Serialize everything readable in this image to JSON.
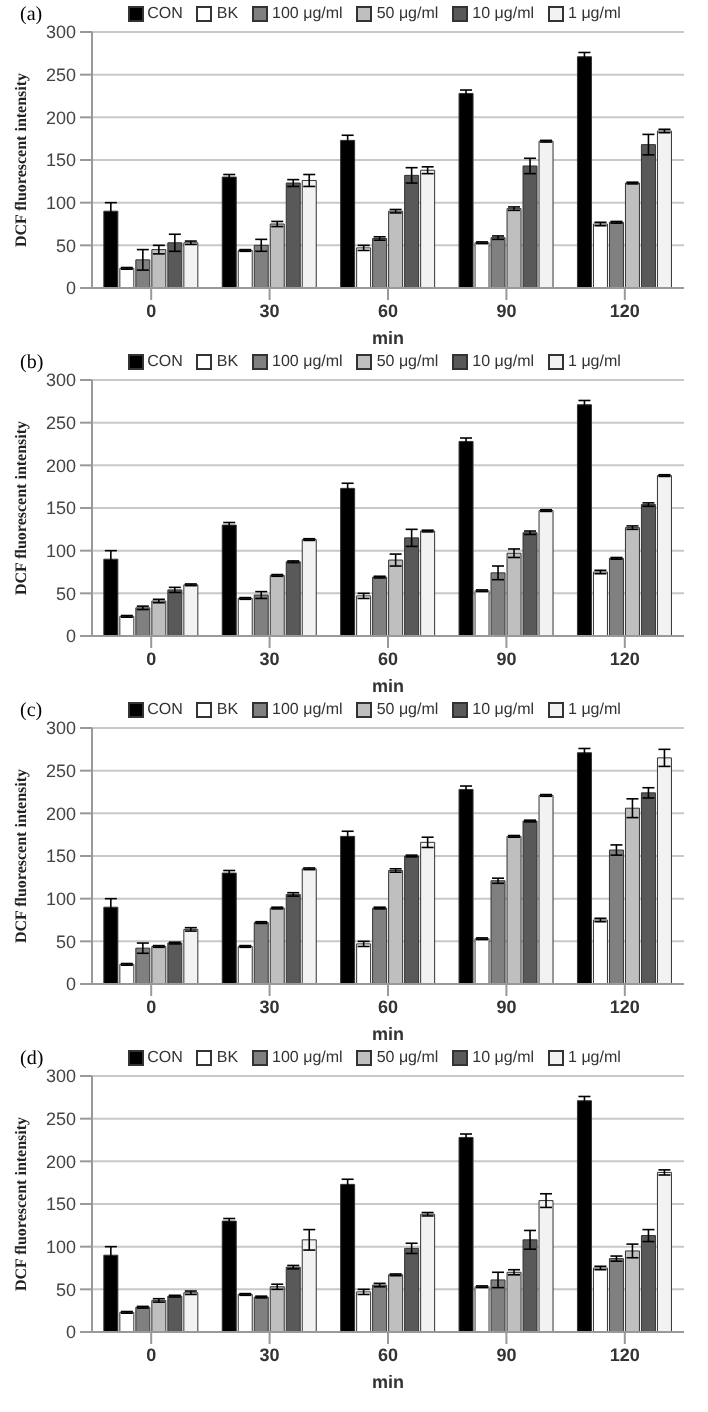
{
  "chart_data": [
    {
      "type": "bar",
      "title": "(a)",
      "xlabel": "min",
      "ylabel": "DCF fluorescent intensity",
      "categories": [
        "0",
        "30",
        "60",
        "90",
        "120"
      ],
      "ylim": [
        0,
        300
      ],
      "yticks": [
        0,
        50,
        100,
        150,
        200,
        250,
        300
      ],
      "grid": "y",
      "legend": "top",
      "series": [
        {
          "name": "CON",
          "color": "#000000",
          "values": [
            90,
            130,
            173,
            228,
            271
          ],
          "errors": [
            10,
            3,
            6,
            4,
            5
          ]
        },
        {
          "name": "BK",
          "color": "#ffffff",
          "values": [
            23,
            44,
            47,
            53,
            75
          ],
          "errors": [
            1,
            1,
            3,
            1,
            2
          ]
        },
        {
          "name": "100 μg/ml",
          "color": "#808080",
          "values": [
            33,
            50,
            58,
            59,
            77
          ],
          "errors": [
            12,
            7,
            2,
            2,
            1
          ]
        },
        {
          "name": "50 μg/ml",
          "color": "#bfbfbf",
          "values": [
            45,
            75,
            90,
            93,
            123
          ],
          "errors": [
            5,
            3,
            2,
            2,
            1
          ]
        },
        {
          "name": "10 μg/ml",
          "color": "#595959",
          "values": [
            53,
            123,
            132,
            143,
            168
          ],
          "errors": [
            10,
            4,
            9,
            9,
            12
          ]
        },
        {
          "name": "1 μg/ml",
          "color": "#f2f2f2",
          "values": [
            53,
            126,
            138,
            172,
            184
          ],
          "errors": [
            2,
            7,
            4,
            1,
            2
          ]
        }
      ]
    },
    {
      "type": "bar",
      "title": "(b)",
      "xlabel": "min",
      "ylabel": "DCF fluorescent intensity",
      "categories": [
        "0",
        "30",
        "60",
        "90",
        "120"
      ],
      "ylim": [
        0,
        300
      ],
      "yticks": [
        0,
        50,
        100,
        150,
        200,
        250,
        300
      ],
      "grid": "y",
      "legend": "top",
      "series": [
        {
          "name": "CON",
          "color": "#000000",
          "values": [
            90,
            130,
            173,
            228,
            271
          ],
          "errors": [
            10,
            3,
            6,
            4,
            5
          ]
        },
        {
          "name": "BK",
          "color": "#ffffff",
          "values": [
            23,
            44,
            47,
            53,
            75
          ],
          "errors": [
            1,
            1,
            3,
            1,
            2
          ]
        },
        {
          "name": "100 μg/ml",
          "color": "#808080",
          "values": [
            33,
            48,
            69,
            74,
            91
          ],
          "errors": [
            2,
            4,
            1,
            8,
            1
          ]
        },
        {
          "name": "50 μg/ml",
          "color": "#bfbfbf",
          "values": [
            41,
            71,
            89,
            97,
            127
          ],
          "errors": [
            2,
            1,
            7,
            5,
            2
          ]
        },
        {
          "name": "10 μg/ml",
          "color": "#595959",
          "values": [
            54,
            87,
            115,
            121,
            154
          ],
          "errors": [
            3,
            1,
            10,
            2,
            2
          ]
        },
        {
          "name": "1 μg/ml",
          "color": "#f2f2f2",
          "values": [
            60,
            113,
            123,
            147,
            188
          ],
          "errors": [
            1,
            1,
            1,
            1,
            1
          ]
        }
      ]
    },
    {
      "type": "bar",
      "title": "(c)",
      "xlabel": "min",
      "ylabel": "DCF fluorescent intensity",
      "categories": [
        "0",
        "30",
        "60",
        "90",
        "120"
      ],
      "ylim": [
        0,
        300
      ],
      "yticks": [
        0,
        50,
        100,
        150,
        200,
        250,
        300
      ],
      "grid": "y",
      "legend": "top",
      "series": [
        {
          "name": "CON",
          "color": "#000000",
          "values": [
            90,
            130,
            173,
            228,
            271
          ],
          "errors": [
            10,
            3,
            6,
            4,
            5
          ]
        },
        {
          "name": "BK",
          "color": "#ffffff",
          "values": [
            23,
            44,
            47,
            53,
            75
          ],
          "errors": [
            1,
            1,
            3,
            1,
            2
          ]
        },
        {
          "name": "100 μg/ml",
          "color": "#808080",
          "values": [
            42,
            72,
            89,
            121,
            157
          ],
          "errors": [
            6,
            1,
            1,
            3,
            6
          ]
        },
        {
          "name": "50 μg/ml",
          "color": "#bfbfbf",
          "values": [
            44,
            89,
            133,
            173,
            206
          ],
          "errors": [
            1,
            1,
            2,
            1,
            11
          ]
        },
        {
          "name": "10 μg/ml",
          "color": "#595959",
          "values": [
            48,
            105,
            150,
            191,
            224
          ],
          "errors": [
            1,
            2,
            1,
            1,
            6
          ]
        },
        {
          "name": "1 μg/ml",
          "color": "#f2f2f2",
          "values": [
            64,
            135,
            166,
            221,
            265
          ],
          "errors": [
            2,
            1,
            6,
            1,
            10
          ]
        }
      ]
    },
    {
      "type": "bar",
      "title": "(d)",
      "xlabel": "min",
      "ylabel": "DCF fluorescent intensity",
      "categories": [
        "0",
        "30",
        "60",
        "90",
        "120"
      ],
      "ylim": [
        0,
        300
      ],
      "yticks": [
        0,
        50,
        100,
        150,
        200,
        250,
        300
      ],
      "grid": "y",
      "legend": "top",
      "series": [
        {
          "name": "CON",
          "color": "#000000",
          "values": [
            90,
            130,
            173,
            228,
            271
          ],
          "errors": [
            10,
            3,
            6,
            4,
            5
          ]
        },
        {
          "name": "BK",
          "color": "#ffffff",
          "values": [
            23,
            44,
            47,
            53,
            75
          ],
          "errors": [
            1,
            1,
            3,
            1,
            2
          ]
        },
        {
          "name": "100 μg/ml",
          "color": "#808080",
          "values": [
            29,
            41,
            55,
            61,
            86
          ],
          "errors": [
            1,
            1,
            2,
            9,
            3
          ]
        },
        {
          "name": "50 μg/ml",
          "color": "#bfbfbf",
          "values": [
            37,
            53,
            67,
            70,
            95
          ],
          "errors": [
            2,
            3,
            1,
            3,
            8
          ]
        },
        {
          "name": "10 μg/ml",
          "color": "#595959",
          "values": [
            42,
            76,
            98,
            108,
            113
          ],
          "errors": [
            1,
            2,
            6,
            11,
            7
          ]
        },
        {
          "name": "1 μg/ml",
          "color": "#f2f2f2",
          "values": [
            46,
            108,
            138,
            154,
            187
          ],
          "errors": [
            2,
            12,
            2,
            8,
            3
          ]
        }
      ]
    }
  ]
}
